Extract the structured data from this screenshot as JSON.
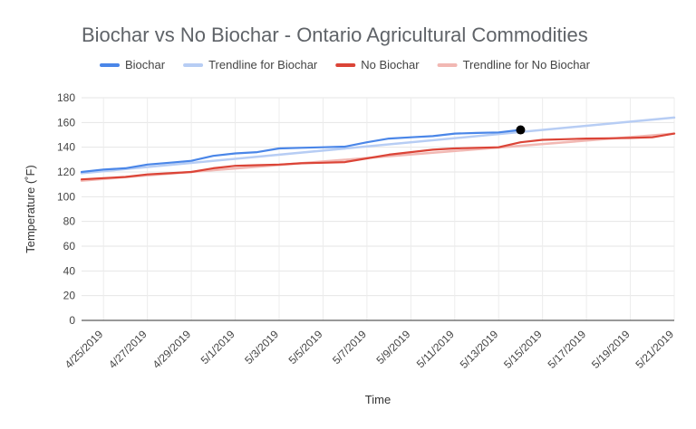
{
  "chart_data": {
    "type": "line",
    "title": "Biochar vs No Biochar - Ontario Agricultural Commodities",
    "xlabel": "Time",
    "ylabel": "Temperature (˚F)",
    "ylim": [
      0,
      180
    ],
    "yticks": [
      0,
      20,
      40,
      60,
      80,
      100,
      120,
      140,
      160,
      180
    ],
    "xlim": [
      "4/24/2019",
      "5/21/2019"
    ],
    "xtick_labels": [
      "4/25/2019",
      "4/27/2019",
      "4/29/2019",
      "5/1/2019",
      "5/3/2019",
      "5/5/2019",
      "5/7/2019",
      "5/9/2019",
      "5/11/2019",
      "5/13/2019",
      "5/15/2019",
      "5/17/2019",
      "5/19/2019",
      "5/21/2019"
    ],
    "grid": true,
    "legend_position": "top",
    "legend": [
      "Biochar",
      "Trendline for Biochar",
      "No Biochar",
      "Trendline for No Biochar"
    ],
    "series": [
      {
        "name": "Biochar",
        "color": "#4a86e8",
        "x": [
          "4/24/2019",
          "4/25/2019",
          "4/26/2019",
          "4/27/2019",
          "4/28/2019",
          "4/29/2019",
          "4/30/2019",
          "5/1/2019",
          "5/2/2019",
          "5/3/2019",
          "5/4/2019",
          "5/5/2019",
          "5/6/2019",
          "5/7/2019",
          "5/8/2019",
          "5/9/2019",
          "5/10/2019",
          "5/11/2019",
          "5/12/2019",
          "5/13/2019",
          "5/14/2019"
        ],
        "y": [
          120,
          122,
          123,
          126,
          127.5,
          129,
          133,
          135,
          136,
          139,
          139.5,
          140,
          140.5,
          144,
          147,
          148,
          149,
          151,
          151.5,
          152,
          154
        ]
      },
      {
        "name": "Trendline for Biochar",
        "color": "#b7cdf4",
        "trend": true,
        "x": [
          "4/24/2019",
          "5/21/2019"
        ],
        "y": [
          119,
          164
        ]
      },
      {
        "name": "No Biochar",
        "color": "#db4437",
        "x": [
          "4/24/2019",
          "4/25/2019",
          "4/26/2019",
          "4/27/2019",
          "4/28/2019",
          "4/29/2019",
          "4/30/2019",
          "5/1/2019",
          "5/2/2019",
          "5/3/2019",
          "5/4/2019",
          "5/5/2019",
          "5/6/2019",
          "5/7/2019",
          "5/8/2019",
          "5/9/2019",
          "5/10/2019",
          "5/11/2019",
          "5/12/2019",
          "5/13/2019",
          "5/14/2019",
          "5/15/2019",
          "5/16/2019",
          "5/17/2019",
          "5/18/2019",
          "5/19/2019",
          "5/20/2019",
          "5/21/2019"
        ],
        "y": [
          114,
          115,
          116,
          118,
          119,
          120,
          123,
          125,
          125.5,
          126,
          127,
          127.5,
          128,
          131,
          134,
          136,
          138,
          139,
          139.5,
          140,
          144,
          146,
          146.5,
          147,
          147.2,
          147.5,
          148,
          151
        ]
      },
      {
        "name": "Trendline for No Biochar",
        "color": "#f2b8b3",
        "trend": true,
        "x": [
          "4/24/2019",
          "5/21/2019"
        ],
        "y": [
          113,
          151
        ]
      }
    ],
    "highlight_point": {
      "x": "5/14/2019",
      "y": 154,
      "color": "#000000"
    }
  }
}
